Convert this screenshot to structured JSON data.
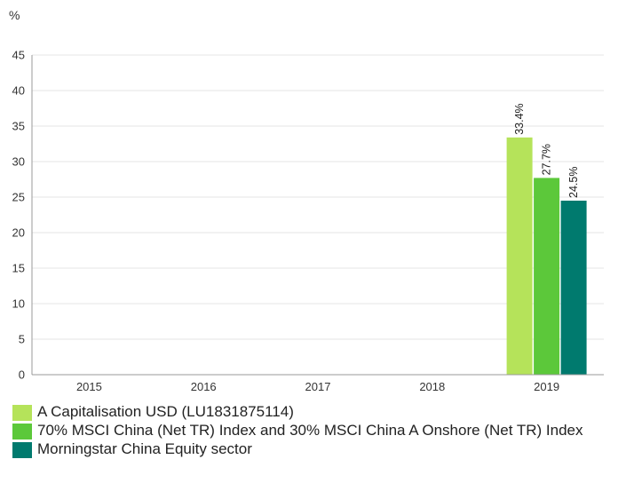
{
  "chart_data": {
    "type": "bar",
    "unit_label": "%",
    "categories": [
      "2015",
      "2016",
      "2017",
      "2018",
      "2019"
    ],
    "ylim": [
      0,
      45
    ],
    "yticks": [
      0,
      5,
      10,
      15,
      20,
      25,
      30,
      35,
      40,
      45
    ],
    "grid": true,
    "legend_position": "bottom",
    "series": [
      {
        "name": "A Capitalisation USD (LU1831875114)",
        "color": "#b5e35a",
        "values": [
          null,
          null,
          null,
          null,
          33.4
        ],
        "labels": [
          null,
          null,
          null,
          null,
          "33.4%"
        ]
      },
      {
        "name": "70% MSCI China (Net TR) Index and 30% MSCI China A Onshore (Net TR) Index",
        "color": "#5cc83a",
        "values": [
          null,
          null,
          null,
          null,
          27.7
        ],
        "labels": [
          null,
          null,
          null,
          null,
          "27.7%"
        ]
      },
      {
        "name": "Morningstar China Equity sector",
        "color": "#007a6e",
        "values": [
          null,
          null,
          null,
          null,
          24.5
        ],
        "labels": [
          null,
          null,
          null,
          null,
          "24.5%"
        ]
      }
    ]
  }
}
